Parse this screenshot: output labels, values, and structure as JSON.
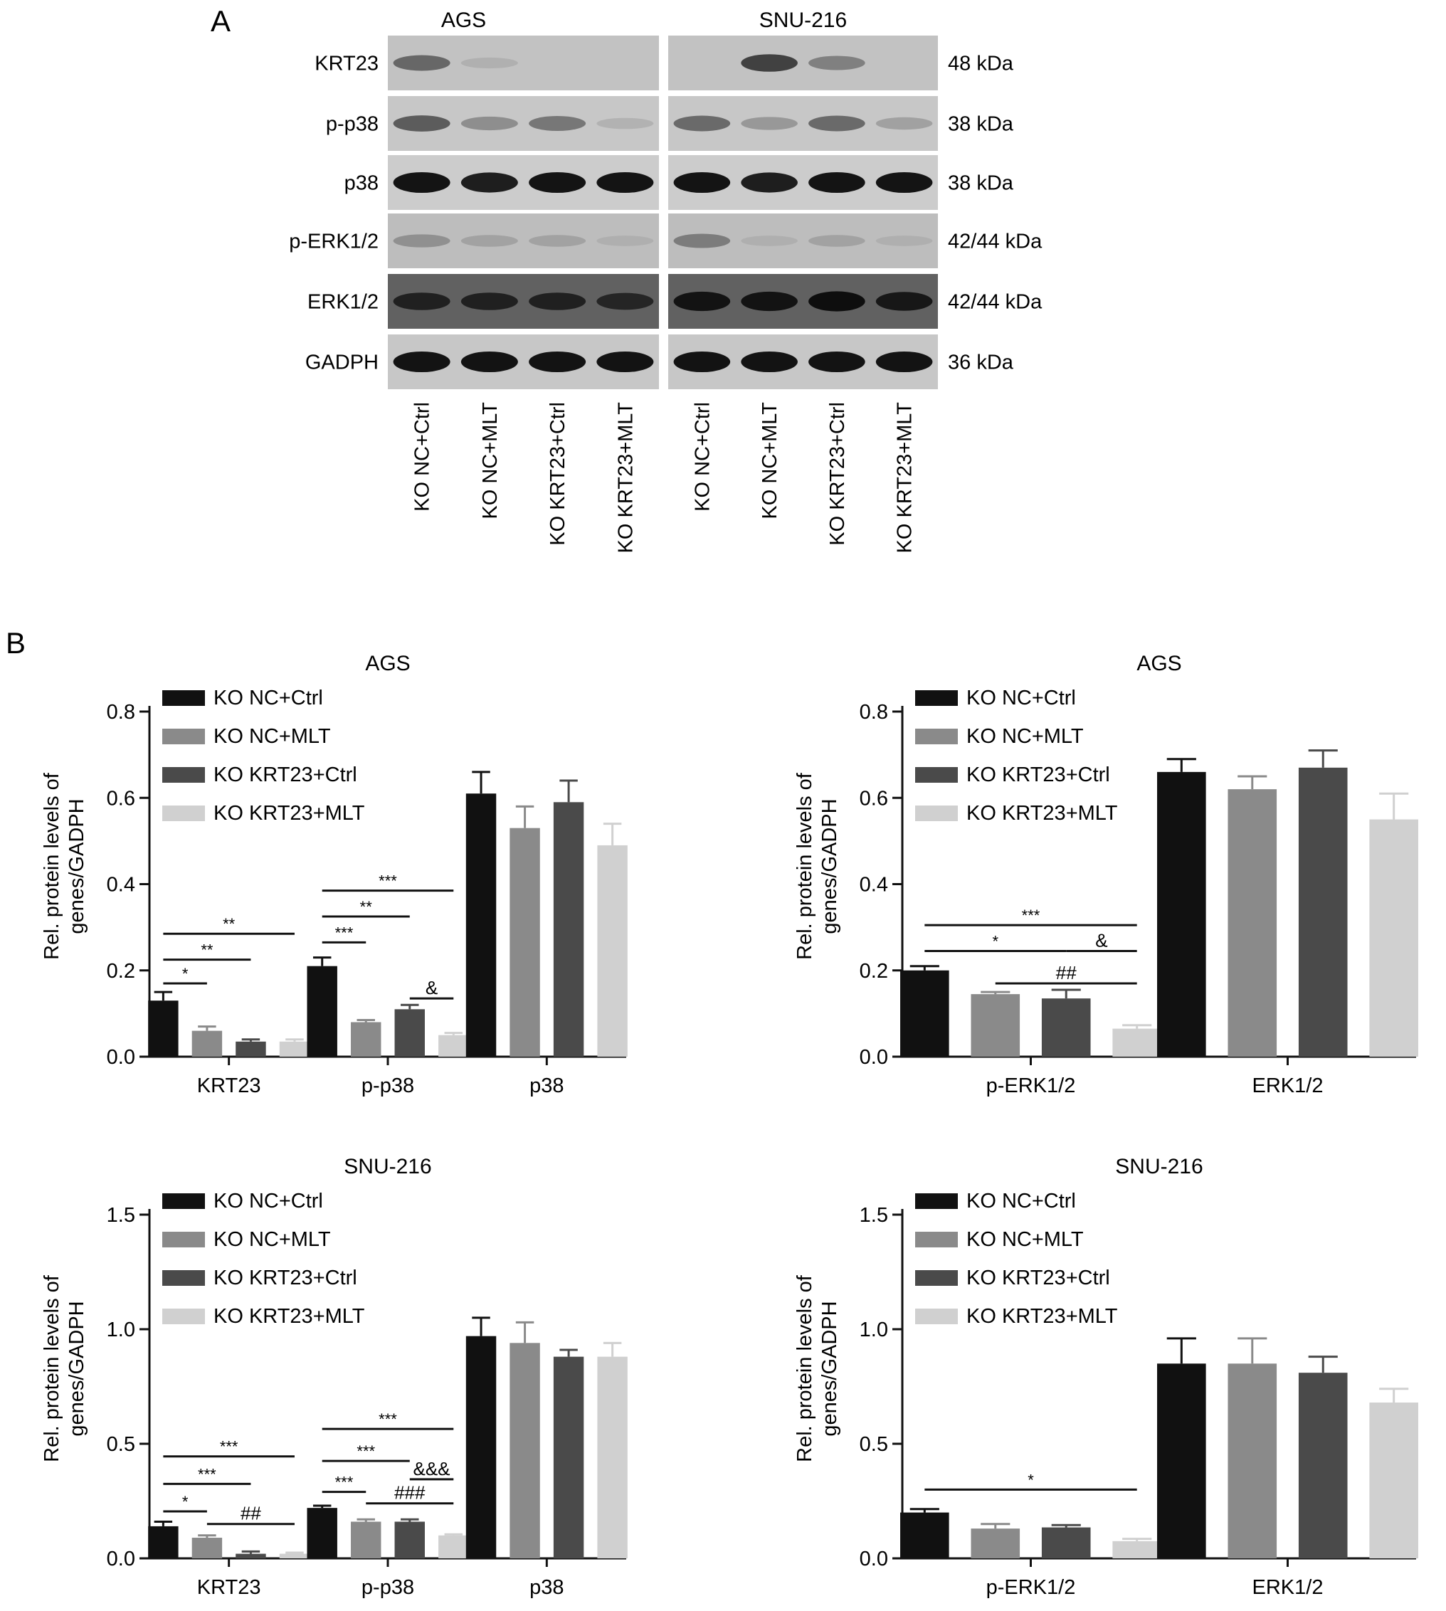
{
  "panel_a": {
    "label": "A",
    "cell_lines": [
      "AGS",
      "SNU-216"
    ],
    "rows": [
      {
        "protein": "KRT23",
        "kda": "48 kDa",
        "ags": [
          0.55,
          0.18,
          0.0,
          0.0
        ],
        "snu": [
          0.0,
          0.7,
          0.45,
          0.0
        ],
        "bg": 0.76
      },
      {
        "protein": "p-p38",
        "kda": "38 kDa",
        "ags": [
          0.6,
          0.4,
          0.5,
          0.2
        ],
        "snu": [
          0.55,
          0.35,
          0.55,
          0.3
        ],
        "bg": 0.78
      },
      {
        "protein": "p38",
        "kda": "38 kDa",
        "ags": [
          0.95,
          0.9,
          0.95,
          0.95
        ],
        "snu": [
          0.95,
          0.9,
          0.95,
          0.95
        ],
        "bg": 0.8
      },
      {
        "protein": "p-ERK1/2",
        "kda": "42/44 kDa",
        "ags": [
          0.35,
          0.25,
          0.25,
          0.15
        ],
        "snu": [
          0.45,
          0.15,
          0.25,
          0.15
        ],
        "bg": 0.74
      },
      {
        "protein": "ERK1/2",
        "kda": "42/44 kDa",
        "ags": [
          0.7,
          0.7,
          0.7,
          0.65
        ],
        "snu": [
          0.85,
          0.85,
          0.9,
          0.8
        ],
        "bg": 0.38
      },
      {
        "protein": "GADPH",
        "kda": "36 kDa",
        "ags": [
          0.95,
          0.95,
          0.95,
          0.95
        ],
        "snu": [
          0.95,
          0.95,
          0.95,
          0.95
        ],
        "bg": 0.78
      }
    ],
    "lane_labels": [
      "KO NC+Ctrl",
      "KO NC+MLT",
      "KO KRT23+Ctrl",
      "KO KRT23+MLT",
      "KO NC+Ctrl",
      "KO NC+MLT",
      "KO KRT23+Ctrl",
      "KO KRT23+MLT"
    ]
  },
  "panel_b_label": "B",
  "colors": {
    "KO NC+Ctrl": "#111111",
    "KO NC+MLT": "#8a8a8a",
    "KO KRT23+Ctrl": "#4a4a4a",
    "KO KRT23+MLT": "#d0d0d0"
  },
  "chart_data": [
    {
      "type": "bar",
      "title": "AGS",
      "ylabel": "Rel. protein levels of genes/GADPH",
      "ylim": [
        0,
        0.8
      ],
      "yticks": [
        "0.0",
        "0.2",
        "0.4",
        "0.6",
        "0.8"
      ],
      "categories": [
        "KRT23",
        "p-p38",
        "p38"
      ],
      "series": [
        {
          "name": "KO NC+Ctrl",
          "values": [
            0.13,
            0.21,
            0.61
          ],
          "errors": [
            0.02,
            0.02,
            0.05
          ]
        },
        {
          "name": "KO NC+MLT",
          "values": [
            0.06,
            0.08,
            0.53
          ],
          "errors": [
            0.01,
            0.005,
            0.05
          ]
        },
        {
          "name": "KO KRT23+Ctrl",
          "values": [
            0.035,
            0.11,
            0.59
          ],
          "errors": [
            0.005,
            0.01,
            0.05
          ]
        },
        {
          "name": "KO KRT23+MLT",
          "values": [
            0.035,
            0.05,
            0.49
          ],
          "errors": [
            0.005,
            0.005,
            0.05
          ]
        }
      ],
      "annotations": [
        {
          "cat": 0,
          "from": 0,
          "to": 1,
          "level": 0.17,
          "text": "*"
        },
        {
          "cat": 0,
          "from": 0,
          "to": 2,
          "level": 0.225,
          "text": "**"
        },
        {
          "cat": 0,
          "from": 0,
          "to": 3,
          "level": 0.285,
          "text": "**"
        },
        {
          "cat": 1,
          "from": 0,
          "to": 1,
          "level": 0.265,
          "text": "***"
        },
        {
          "cat": 1,
          "from": 0,
          "to": 2,
          "level": 0.325,
          "text": "**"
        },
        {
          "cat": 1,
          "from": 0,
          "to": 3,
          "level": 0.385,
          "text": "***"
        },
        {
          "cat": 1,
          "from": 2,
          "to": 3,
          "level": 0.135,
          "text": "&"
        }
      ]
    },
    {
      "type": "bar",
      "title": "AGS",
      "ylabel": "Rel. protein levels of genes/GADPH",
      "ylim": [
        0,
        0.8
      ],
      "yticks": [
        "0.0",
        "0.2",
        "0.4",
        "0.6",
        "0.8"
      ],
      "categories": [
        "p-ERK1/2",
        "ERK1/2"
      ],
      "series": [
        {
          "name": "KO NC+Ctrl",
          "values": [
            0.2,
            0.66
          ],
          "errors": [
            0.01,
            0.03
          ]
        },
        {
          "name": "KO NC+MLT",
          "values": [
            0.145,
            0.62
          ],
          "errors": [
            0.005,
            0.03
          ]
        },
        {
          "name": "KO KRT23+Ctrl",
          "values": [
            0.135,
            0.67
          ],
          "errors": [
            0.02,
            0.04
          ]
        },
        {
          "name": "KO KRT23+MLT",
          "values": [
            0.065,
            0.55
          ],
          "errors": [
            0.008,
            0.06
          ]
        }
      ],
      "annotations": [
        {
          "cat": 0,
          "from": 1,
          "to": 3,
          "level": 0.17,
          "text": "##"
        },
        {
          "cat": 0,
          "from": 0,
          "to": 2,
          "level": 0.245,
          "text": "*"
        },
        {
          "cat": 0,
          "from": 2,
          "to": 3,
          "level": 0.245,
          "text": "&"
        },
        {
          "cat": 0,
          "from": 0,
          "to": 3,
          "level": 0.305,
          "text": "***"
        }
      ]
    },
    {
      "type": "bar",
      "title": "SNU-216",
      "ylabel": "Rel. protein levels of genes/GADPH",
      "ylim": [
        0,
        1.5
      ],
      "yticks": [
        "0.0",
        "0.5",
        "1.0",
        "1.5"
      ],
      "categories": [
        "KRT23",
        "p-p38",
        "p38"
      ],
      "series": [
        {
          "name": "KO NC+Ctrl",
          "values": [
            0.14,
            0.22,
            0.97
          ],
          "errors": [
            0.02,
            0.01,
            0.08
          ]
        },
        {
          "name": "KO NC+MLT",
          "values": [
            0.09,
            0.16,
            0.94
          ],
          "errors": [
            0.01,
            0.01,
            0.09
          ]
        },
        {
          "name": "KO KRT23+Ctrl",
          "values": [
            0.02,
            0.16,
            0.88
          ],
          "errors": [
            0.01,
            0.01,
            0.03
          ]
        },
        {
          "name": "KO KRT23+MLT",
          "values": [
            0.02,
            0.1,
            0.88
          ],
          "errors": [
            0.005,
            0.005,
            0.06
          ]
        }
      ],
      "annotations": [
        {
          "cat": 0,
          "from": 0,
          "to": 1,
          "level": 0.205,
          "text": "*"
        },
        {
          "cat": 0,
          "from": 0,
          "to": 2,
          "level": 0.325,
          "text": "***"
        },
        {
          "cat": 0,
          "from": 0,
          "to": 3,
          "level": 0.445,
          "text": "***"
        },
        {
          "cat": 0,
          "from": 1,
          "to": 3,
          "level": 0.15,
          "text": "##"
        },
        {
          "cat": 1,
          "from": 0,
          "to": 1,
          "level": 0.29,
          "text": "***"
        },
        {
          "cat": 1,
          "from": 0,
          "to": 2,
          "level": 0.425,
          "text": "***"
        },
        {
          "cat": 1,
          "from": 0,
          "to": 3,
          "level": 0.565,
          "text": "***"
        },
        {
          "cat": 1,
          "from": 1,
          "to": 3,
          "level": 0.24,
          "text": "###"
        },
        {
          "cat": 1,
          "from": 2,
          "to": 3,
          "level": 0.345,
          "text": "&&&"
        }
      ]
    },
    {
      "type": "bar",
      "title": "SNU-216",
      "ylabel": "Rel. protein levels of genes/GADPH",
      "ylim": [
        0,
        1.5
      ],
      "yticks": [
        "0.0",
        "0.5",
        "1.0",
        "1.5"
      ],
      "categories": [
        "p-ERK1/2",
        "ERK1/2"
      ],
      "series": [
        {
          "name": "KO NC+Ctrl",
          "values": [
            0.2,
            0.85
          ],
          "errors": [
            0.015,
            0.11
          ]
        },
        {
          "name": "KO NC+MLT",
          "values": [
            0.13,
            0.85
          ],
          "errors": [
            0.02,
            0.11
          ]
        },
        {
          "name": "KO KRT23+Ctrl",
          "values": [
            0.135,
            0.81
          ],
          "errors": [
            0.01,
            0.07
          ]
        },
        {
          "name": "KO KRT23+MLT",
          "values": [
            0.075,
            0.68
          ],
          "errors": [
            0.01,
            0.06
          ]
        }
      ],
      "annotations": [
        {
          "cat": 0,
          "from": 0,
          "to": 3,
          "level": 0.3,
          "text": "*"
        }
      ]
    }
  ]
}
